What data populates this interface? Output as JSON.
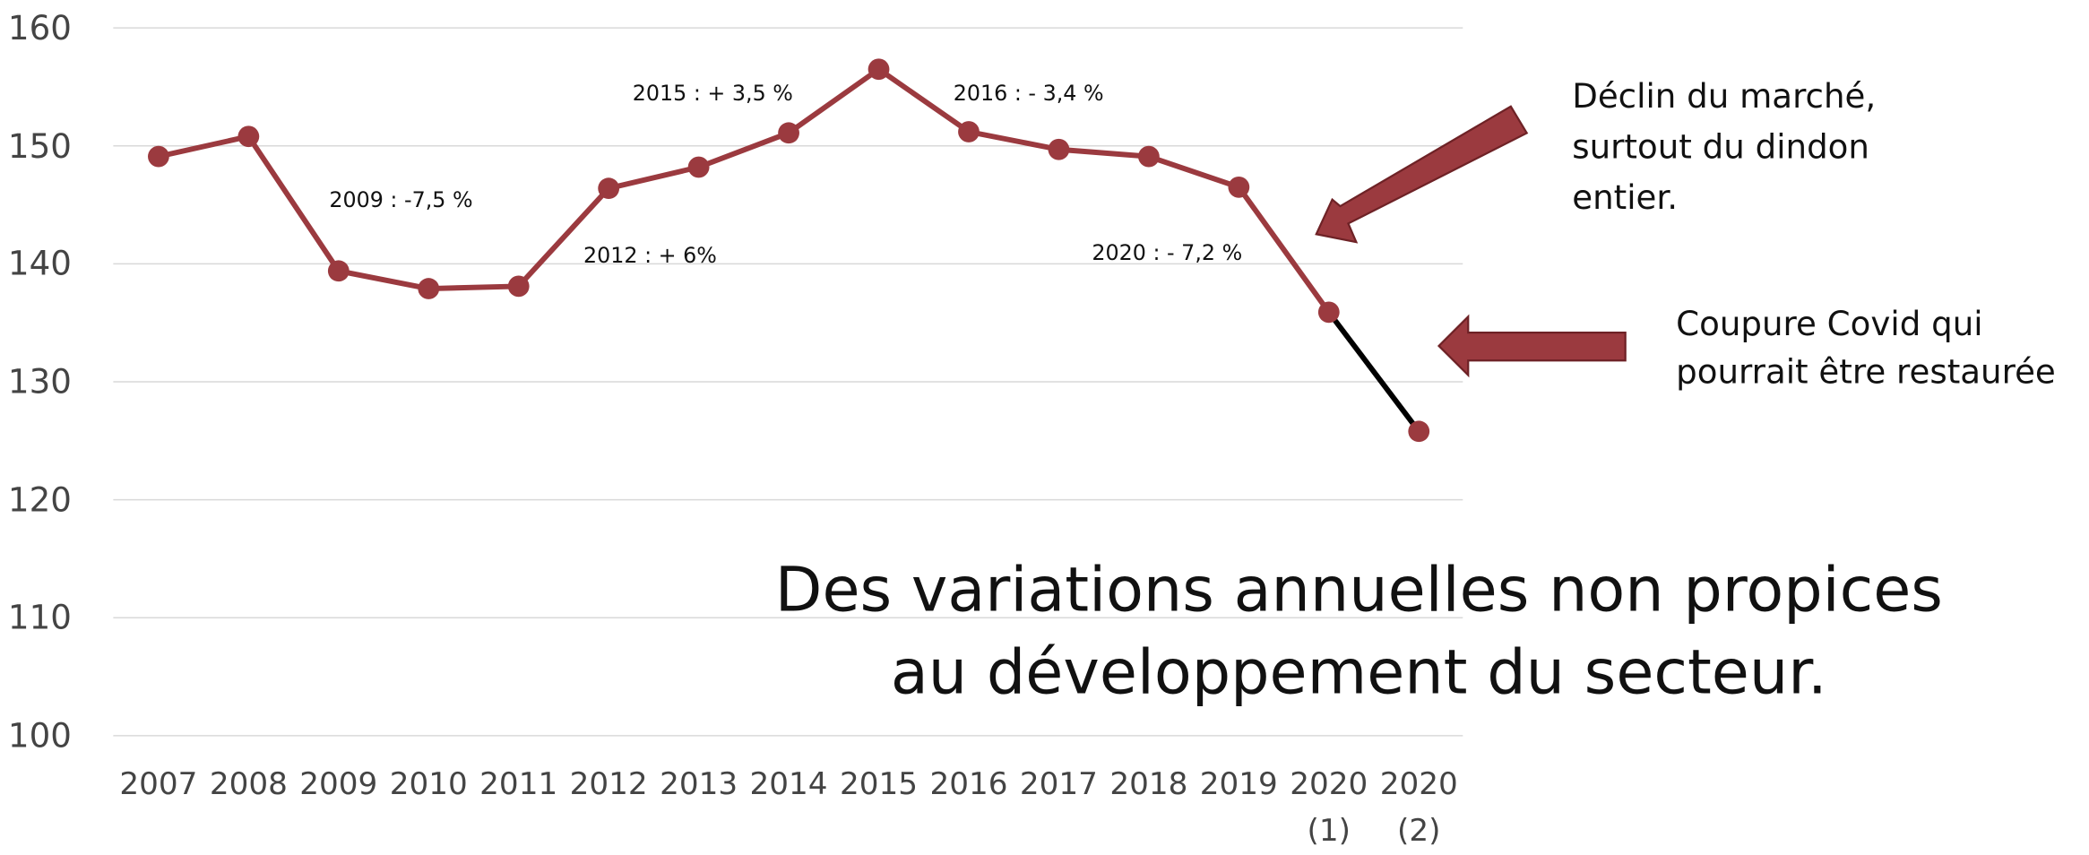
{
  "chart_data": {
    "type": "line",
    "categories": [
      "2007",
      "2008",
      "2009",
      "2010",
      "2011",
      "2012",
      "2013",
      "2014",
      "2015",
      "2016",
      "2017",
      "2018",
      "2019",
      "2020\n(1)",
      "2020\n(2)"
    ],
    "series": [
      {
        "color": "#9b3a3f",
        "values": [
          149.1,
          150.8,
          139.4,
          137.9,
          138.1,
          146.4,
          148.2,
          151.1,
          156.5,
          151.2,
          149.7,
          149.1,
          146.5,
          135.9,
          125.8
        ]
      }
    ],
    "last_segment_color": "#000000",
    "ylim": [
      100,
      160
    ],
    "yticks": [
      100,
      110,
      120,
      130,
      140,
      150,
      160
    ],
    "grid": true,
    "annotations": [
      "2009 : -7,5 %",
      "2012 : + 6%",
      "2015 : + 3,5 %",
      "2016 : - 3,4 %",
      "2020 : - 7,2 %"
    ],
    "callouts": [
      "Déclin du marché,\nsurtout du dindon\nentier.",
      "Coupure Covid qui\npourrait être restaurée"
    ],
    "headline": "Des variations annuelles non propices\nau développement du secteur."
  }
}
